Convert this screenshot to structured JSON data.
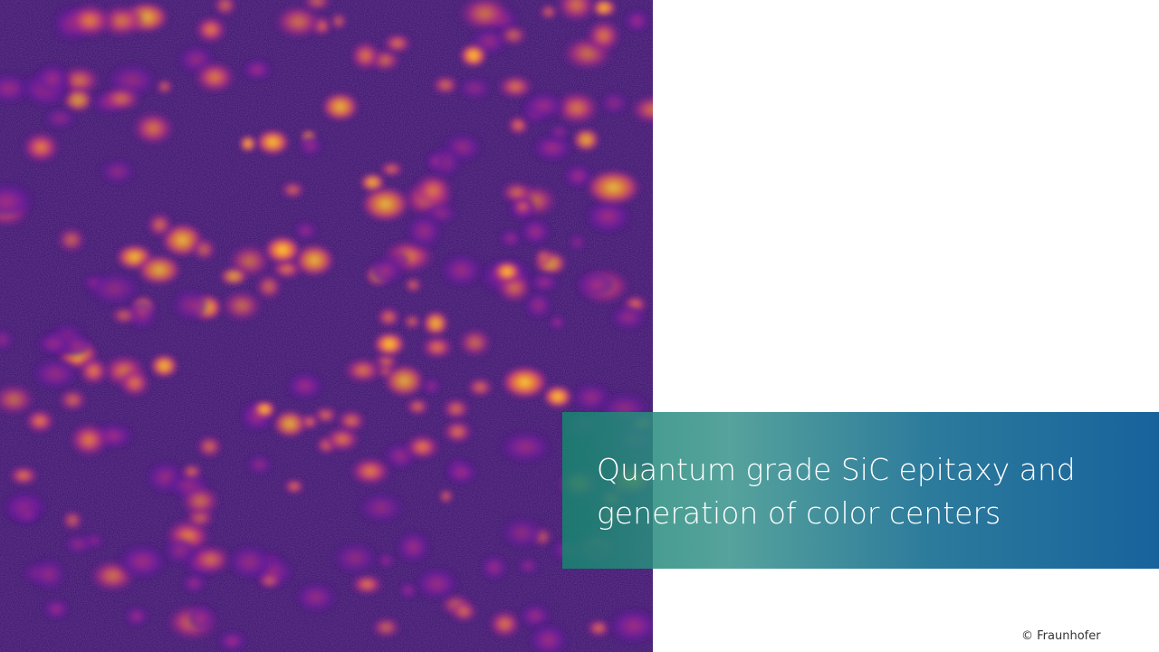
{
  "slide": {
    "title_lines": [
      "Quantum grade SiC epitaxy and",
      "generation of color centers"
    ],
    "copyright": "© Fraunhofer"
  },
  "image": {
    "subject": "photoluminescence-map",
    "colormap": [
      "#1a0638",
      "#3a0f6e",
      "#7a1fa2",
      "#c2357a",
      "#f07a2a",
      "#ffd23a"
    ]
  },
  "colors": {
    "banner_start": "#15856e",
    "banner_end": "#0e5c98",
    "title_text": "#ffffff",
    "background": "#ffffff"
  }
}
